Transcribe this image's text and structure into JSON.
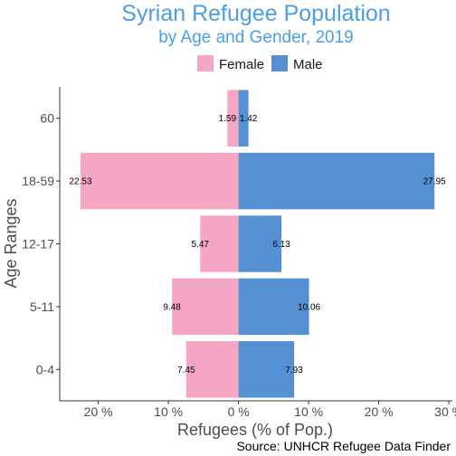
{
  "chart_data": {
    "type": "bar",
    "orientation": "horizontal",
    "title": "Syrian Refugee Population",
    "subtitle": "by Age and Gender, 2019",
    "xlabel": "Refugees (% of Pop.)",
    "ylabel": "Age Ranges",
    "caption": "Source: UNHCR Refugee Data Finder",
    "categories": [
      "0-4",
      "5-11",
      "12-17",
      "18-59",
      "60"
    ],
    "series": [
      {
        "name": "Female",
        "color": "#f4a6c4",
        "values": [
          7.45,
          9.48,
          5.47,
          22.53,
          1.59
        ],
        "direction": "negative"
      },
      {
        "name": "Male",
        "color": "#5590d3",
        "values": [
          7.93,
          10.06,
          6.13,
          27.95,
          1.42
        ],
        "direction": "positive"
      }
    ],
    "xlim": [
      -25.5,
      30.5
    ],
    "xticks": [
      -20,
      -10,
      0,
      10,
      20,
      30
    ],
    "xtick_labels": [
      "20 %",
      "10 %",
      "0 %",
      "10 %",
      "20 %",
      "30 %"
    ],
    "legend_position": "top",
    "grid": false
  }
}
